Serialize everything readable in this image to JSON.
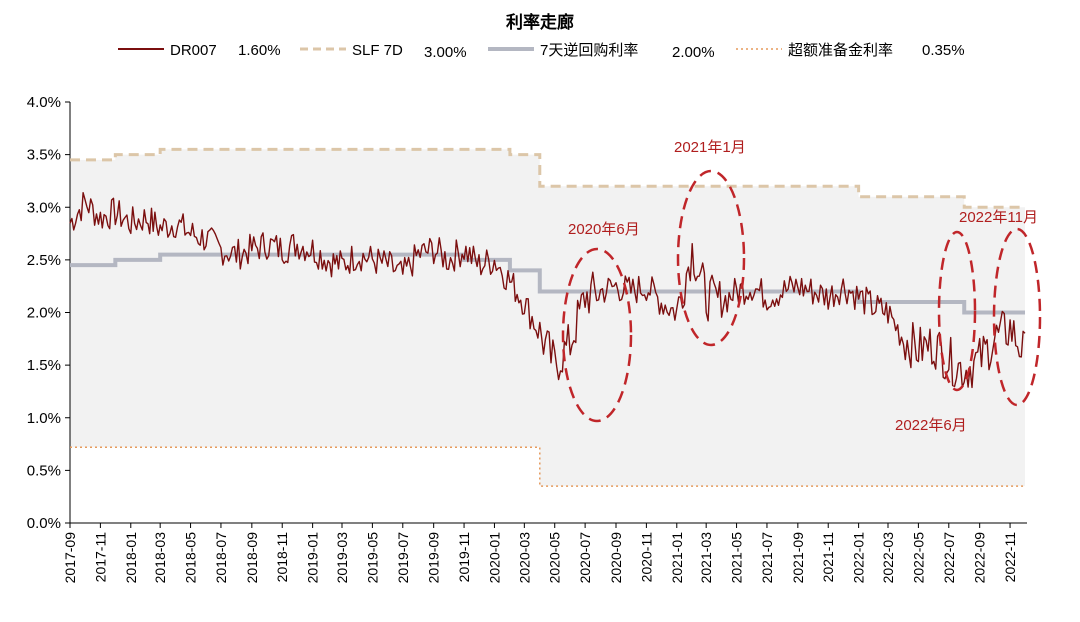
{
  "chart_data": {
    "type": "line",
    "title": "利率走廊",
    "xlabel": "",
    "ylabel": "",
    "ylim": [
      0,
      4.0
    ],
    "yticks": [
      "0.0%",
      "0.5%",
      "1.0%",
      "1.5%",
      "2.0%",
      "2.5%",
      "3.0%",
      "3.5%",
      "4.0%"
    ],
    "xticks": [
      "2017-09",
      "2017-11",
      "2018-01",
      "2018-03",
      "2018-05",
      "2018-07",
      "2018-09",
      "2018-11",
      "2019-01",
      "2019-03",
      "2019-05",
      "2019-07",
      "2019-09",
      "2019-11",
      "2020-01",
      "2020-03",
      "2020-05",
      "2020-07",
      "2020-09",
      "2020-11",
      "2021-01",
      "2021-03",
      "2021-05",
      "2021-07",
      "2021-09",
      "2021-11",
      "2022-01",
      "2022-03",
      "2022-05",
      "2022-07",
      "2022-09",
      "2022-11"
    ],
    "legend": [
      {
        "label": "DR007",
        "value": "1.60%",
        "color": "#7b0f0f",
        "style": "solid"
      },
      {
        "label": "SLF 7D",
        "value": "3.00%",
        "color": "#dcc6a8",
        "style": "dashed"
      },
      {
        "label": "7天逆回购利率",
        "value": "2.00%",
        "color": "#b4b7c2",
        "style": "solid-thick"
      },
      {
        "label": "超额准备金利率",
        "value": "0.35%",
        "color": "#e59a5c",
        "style": "dotted"
      }
    ],
    "series": [
      {
        "name": "SLF 7D",
        "color": "#dcc6a8",
        "step_points": [
          [
            "2017-09",
            3.45
          ],
          [
            "2017-12",
            3.5
          ],
          [
            "2018-03",
            3.55
          ],
          [
            "2020-02",
            3.5
          ],
          [
            "2020-04",
            3.2
          ],
          [
            "2022-01",
            3.1
          ],
          [
            "2022-08",
            3.0
          ],
          [
            "2022-12",
            3.0
          ]
        ]
      },
      {
        "name": "7天逆回购利率",
        "color": "#b4b7c2",
        "step_points": [
          [
            "2017-09",
            2.45
          ],
          [
            "2017-12",
            2.5
          ],
          [
            "2018-03",
            2.55
          ],
          [
            "2019-11",
            2.5
          ],
          [
            "2020-02",
            2.4
          ],
          [
            "2020-04",
            2.2
          ],
          [
            "2022-01",
            2.1
          ],
          [
            "2022-08",
            2.0
          ],
          [
            "2022-12",
            2.0
          ]
        ]
      },
      {
        "name": "超额准备金利率",
        "color": "#e59a5c",
        "step_points": [
          [
            "2017-09",
            0.72
          ],
          [
            "2020-04",
            0.35
          ],
          [
            "2022-12",
            0.35
          ]
        ]
      },
      {
        "name": "DR007",
        "color": "#7b0f0f",
        "points": [
          [
            "2017-09",
            2.85
          ],
          [
            "2017-10",
            3.05
          ],
          [
            "2017-11",
            2.9
          ],
          [
            "2017-12",
            2.95
          ],
          [
            "2018-01",
            2.85
          ],
          [
            "2018-02",
            2.9
          ],
          [
            "2018-03",
            2.8
          ],
          [
            "2018-04",
            2.85
          ],
          [
            "2018-05",
            2.75
          ],
          [
            "2018-06",
            2.7
          ],
          [
            "2018-07",
            2.6
          ],
          [
            "2018-08",
            2.55
          ],
          [
            "2018-09",
            2.6
          ],
          [
            "2018-10",
            2.65
          ],
          [
            "2018-11",
            2.6
          ],
          [
            "2018-12",
            2.65
          ],
          [
            "2019-01",
            2.6
          ],
          [
            "2019-02",
            2.5
          ],
          [
            "2019-03",
            2.45
          ],
          [
            "2019-04",
            2.55
          ],
          [
            "2019-05",
            2.5
          ],
          [
            "2019-06",
            2.45
          ],
          [
            "2019-07",
            2.35
          ],
          [
            "2019-08",
            2.55
          ],
          [
            "2019-09",
            2.6
          ],
          [
            "2019-10",
            2.5
          ],
          [
            "2019-11",
            2.6
          ],
          [
            "2019-12",
            2.45
          ],
          [
            "2020-01",
            2.5
          ],
          [
            "2020-02",
            2.3
          ],
          [
            "2020-03",
            2.1
          ],
          [
            "2020-04",
            1.8
          ],
          [
            "2020-05",
            1.5
          ],
          [
            "2020-06",
            1.7
          ],
          [
            "2020-07",
            2.15
          ],
          [
            "2020-08",
            2.2
          ],
          [
            "2020-09",
            2.25
          ],
          [
            "2020-10",
            2.2
          ],
          [
            "2020-11",
            2.25
          ],
          [
            "2020-12",
            2.1
          ],
          [
            "2021-01",
            2.0
          ],
          [
            "2021-02",
            2.6
          ],
          [
            "2021-03",
            2.15
          ],
          [
            "2021-04",
            2.1
          ],
          [
            "2021-05",
            2.2
          ],
          [
            "2021-06",
            2.25
          ],
          [
            "2021-07",
            2.15
          ],
          [
            "2021-08",
            2.2
          ],
          [
            "2021-09",
            2.25
          ],
          [
            "2021-10",
            2.2
          ],
          [
            "2021-11",
            2.15
          ],
          [
            "2021-12",
            2.25
          ],
          [
            "2022-01",
            2.15
          ],
          [
            "2022-02",
            2.05
          ],
          [
            "2022-03",
            2.0
          ],
          [
            "2022-04",
            1.75
          ],
          [
            "2022-05",
            1.65
          ],
          [
            "2022-06",
            1.7
          ],
          [
            "2022-07",
            1.55
          ],
          [
            "2022-08",
            1.45
          ],
          [
            "2022-09",
            1.55
          ],
          [
            "2022-10",
            1.75
          ],
          [
            "2022-11",
            1.85
          ],
          [
            "2022-12",
            1.6
          ]
        ]
      }
    ],
    "annotations": [
      "2020年6月",
      "2021年1月",
      "2022年6月",
      "2022年11月"
    ]
  }
}
